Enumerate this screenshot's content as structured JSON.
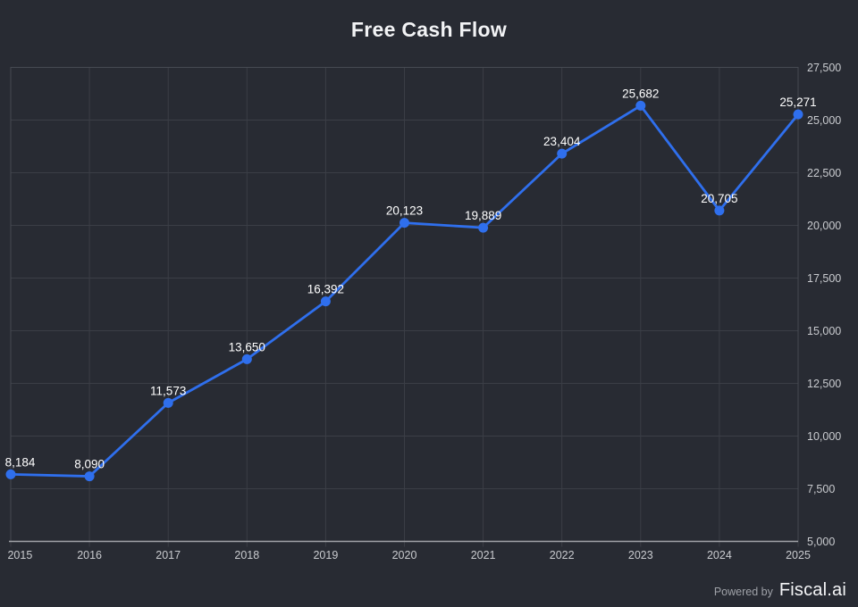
{
  "title": "Free Cash Flow",
  "footer": {
    "powered_by": "Powered by",
    "brand": "Fiscal.ai"
  },
  "chart_data": {
    "type": "line",
    "title": "Free Cash Flow",
    "categories": [
      "2015",
      "2016",
      "2017",
      "2018",
      "2019",
      "2020",
      "2021",
      "2022",
      "2023",
      "2024",
      "2025"
    ],
    "series": [
      {
        "name": "Free Cash Flow",
        "values": [
          8184,
          8090,
          11573,
          13650,
          16392,
          20123,
          19889,
          23404,
          25682,
          20705,
          25271
        ],
        "labels": [
          "8,184",
          "8,090",
          "11,573",
          "13,650",
          "16,392",
          "20,123",
          "19,889",
          "23,404",
          "25,682",
          "20,705",
          "25,271"
        ]
      }
    ],
    "xlabel": "",
    "ylabel": "",
    "ylim": [
      5000,
      27500
    ],
    "ytick_step": 2500,
    "ytick_labels": [
      "5,000",
      "7,500",
      "10,000",
      "12,500",
      "15,000",
      "17,500",
      "20,000",
      "22,500",
      "25,000",
      "27,500"
    ],
    "y_axis_side": "right",
    "grid": true,
    "legend": false,
    "colors": {
      "background": "#282b33",
      "line": "#2f6fed",
      "marker": "#2f6fed",
      "grid": "#3b3e46",
      "plot_border": "#464a52",
      "x_axis_line": "#a0a2a7",
      "tick_label": "#c9cbcf",
      "data_label": "#ffffff",
      "title": "#f2f3f5"
    }
  }
}
